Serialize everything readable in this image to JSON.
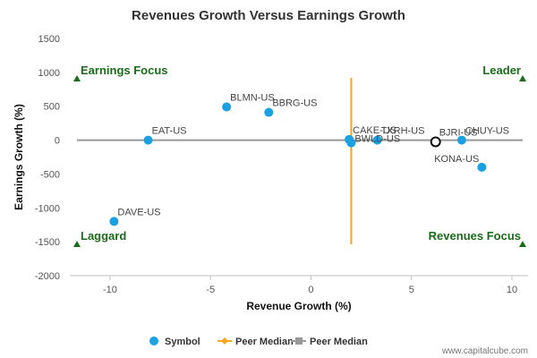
{
  "chart_data": {
    "type": "scatter",
    "title": "Revenues Growth Versus Earnings Growth",
    "xlabel": "Revenue Growth (%)",
    "ylabel": "Earnings Growth (%)",
    "xlim": [
      -12,
      10.8
    ],
    "ylim": [
      -2000,
      1500
    ],
    "x_ticks": [
      -10,
      -5,
      0,
      5,
      10
    ],
    "y_ticks": [
      1500,
      1000,
      500,
      0,
      -500,
      -1000,
      -1500,
      -2000
    ],
    "grid": false,
    "series": [
      {
        "name": "Symbol",
        "color": "#1ba1e2",
        "points": [
          {
            "label": "BLMN-US",
            "x": -4.2,
            "y": 490
          },
          {
            "label": "BBRG-US",
            "x": -2.1,
            "y": 410
          },
          {
            "label": "EAT-US",
            "x": -8.1,
            "y": 0
          },
          {
            "label": "DAVE-US",
            "x": -9.8,
            "y": -1200
          },
          {
            "label": "CAKE-US",
            "x": 1.9,
            "y": 10
          },
          {
            "label": "BWLD-US",
            "x": 2.0,
            "y": -40
          },
          {
            "label": "TXRH-US",
            "x": 3.3,
            "y": 0
          },
          {
            "label": "CHUY-US",
            "x": 7.5,
            "y": 0
          },
          {
            "label": "KONA-US",
            "x": 8.5,
            "y": -400
          }
        ]
      }
    ],
    "highlight": {
      "label": "BJRI-US",
      "x": 6.2,
      "y": -25
    },
    "peer_median": {
      "x": {
        "name": "Peer Median",
        "value": 2.0,
        "color": "#f5a623"
      },
      "y": {
        "name": "Peer Median",
        "value": 0,
        "color": "#999999"
      }
    },
    "quadrants": {
      "top_left": "Earnings Focus",
      "top_right": "Leader",
      "bottom_left": "Laggard",
      "bottom_right": "Revenues Focus",
      "color": "#1a6b1a"
    },
    "legend": {
      "placement": "bottom-center",
      "items": [
        {
          "name": "Symbol",
          "shape": "circle",
          "color": "#1ba1e2"
        },
        {
          "name": "Peer Median",
          "shape": "diamond",
          "color": "#f5a623"
        },
        {
          "name": "Peer Median",
          "shape": "square",
          "color": "#999999"
        }
      ]
    },
    "credit": "www.capitalcube.com"
  }
}
